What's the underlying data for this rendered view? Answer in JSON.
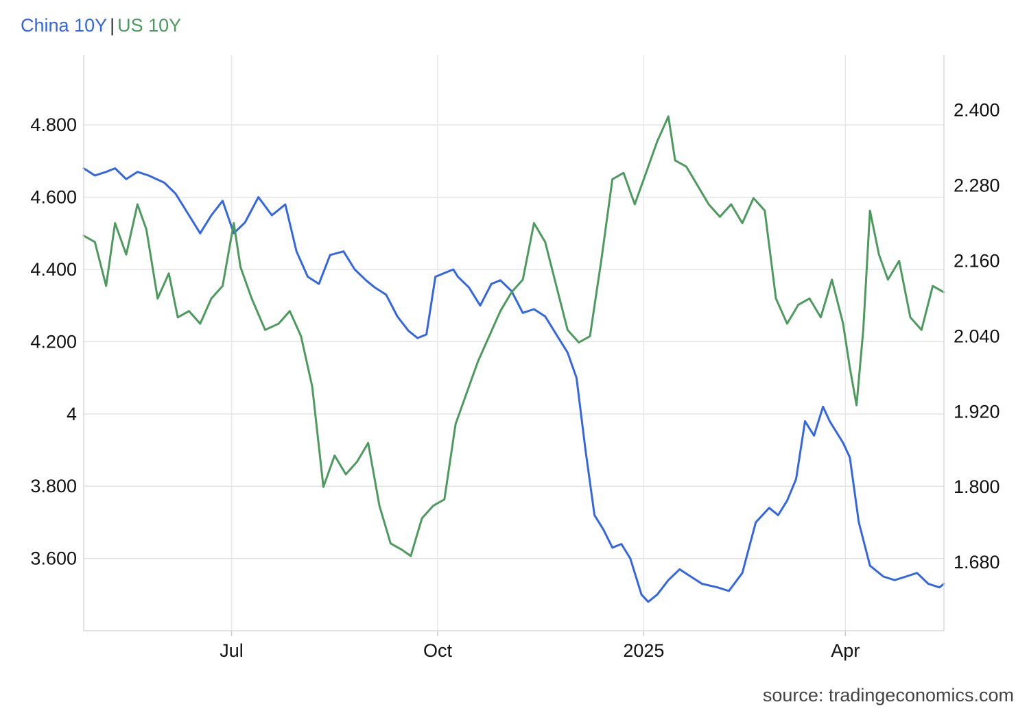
{
  "legend": {
    "separator": "|",
    "items": [
      {
        "label": "China 10Y",
        "color": "#3366e6"
      },
      {
        "label": "US 10Y",
        "color": "#4c9a5e"
      }
    ]
  },
  "source": "source: tradingeconomics.com",
  "chart_data": {
    "type": "line",
    "title": "",
    "grid": true,
    "x_range": [
      "2024-04-26",
      "2025-05-15"
    ],
    "x_ticks": [
      {
        "label": "Jul",
        "date": "2024-07-01"
      },
      {
        "label": "Oct",
        "date": "2024-10-01"
      },
      {
        "label": "2025",
        "date": "2025-01-01"
      },
      {
        "label": "Apr",
        "date": "2025-04-01"
      }
    ],
    "y_left": {
      "range": [
        3.4,
        4.994
      ],
      "ticks": [
        3.6,
        3.8,
        4,
        4.2,
        4.4,
        4.6,
        4.8
      ],
      "tick_labels": [
        "3.600",
        "3.800",
        "4",
        "4.200",
        "4.400",
        "4.600",
        "4.800"
      ]
    },
    "y_right": {
      "range": [
        1.571,
        2.488
      ],
      "ticks": [
        1.68,
        1.8,
        1.92,
        2.04,
        2.16,
        2.28,
        2.4
      ],
      "tick_labels": [
        "1.680",
        "1.800",
        "1.920",
        "2.040",
        "2.160",
        "2.280",
        "2.400"
      ]
    },
    "series": [
      {
        "name": "China 10Y",
        "axis": "left",
        "color": "#3366e6",
        "x": [
          "2024-04-26",
          "2024-05-01",
          "2024-05-06",
          "2024-05-10",
          "2024-05-15",
          "2024-05-20",
          "2024-05-25",
          "2024-06-01",
          "2024-06-06",
          "2024-06-12",
          "2024-06-17",
          "2024-06-22",
          "2024-06-27",
          "2024-07-02",
          "2024-07-07",
          "2024-07-13",
          "2024-07-19",
          "2024-07-25",
          "2024-07-30",
          "2024-08-04",
          "2024-08-09",
          "2024-08-14",
          "2024-08-20",
          "2024-08-25",
          "2024-08-30",
          "2024-09-03",
          "2024-09-08",
          "2024-09-13",
          "2024-09-18",
          "2024-09-22",
          "2024-09-26",
          "2024-09-30",
          "2024-10-08",
          "2024-10-10",
          "2024-10-15",
          "2024-10-20",
          "2024-10-25",
          "2024-10-29",
          "2024-11-03",
          "2024-11-08",
          "2024-11-13",
          "2024-11-18",
          "2024-11-23",
          "2024-11-28",
          "2024-12-02",
          "2024-12-06",
          "2024-12-10",
          "2024-12-14",
          "2024-12-18",
          "2024-12-22",
          "2024-12-26",
          "2024-12-31",
          "2025-01-03",
          "2025-01-07",
          "2025-01-12",
          "2025-01-17",
          "2025-01-22",
          "2025-01-27",
          "2025-02-03",
          "2025-02-08",
          "2025-02-14",
          "2025-02-20",
          "2025-02-26",
          "2025-03-02",
          "2025-03-06",
          "2025-03-10",
          "2025-03-14",
          "2025-03-18",
          "2025-03-22",
          "2025-03-25",
          "2025-03-31",
          "2025-04-03",
          "2025-04-07",
          "2025-04-12",
          "2025-04-18",
          "2025-04-23",
          "2025-04-28",
          "2025-05-03",
          "2025-05-08",
          "2025-05-13",
          "2025-05-15"
        ],
        "values": [
          4.68,
          4.66,
          4.67,
          4.68,
          4.65,
          4.67,
          4.66,
          4.64,
          4.61,
          4.55,
          4.5,
          4.55,
          4.59,
          4.5,
          4.53,
          4.6,
          4.55,
          4.58,
          4.45,
          4.38,
          4.36,
          4.44,
          4.45,
          4.4,
          4.37,
          4.35,
          4.33,
          4.27,
          4.23,
          4.21,
          4.22,
          4.38,
          4.4,
          4.38,
          4.35,
          4.3,
          4.36,
          4.37,
          4.34,
          4.28,
          4.29,
          4.27,
          4.22,
          4.17,
          4.1,
          3.9,
          3.72,
          3.68,
          3.63,
          3.64,
          3.6,
          3.5,
          3.48,
          3.5,
          3.54,
          3.57,
          3.55,
          3.53,
          3.52,
          3.51,
          3.56,
          3.7,
          3.74,
          3.72,
          3.76,
          3.82,
          3.98,
          3.94,
          4.02,
          3.98,
          3.92,
          3.88,
          3.7,
          3.58,
          3.55,
          3.54,
          3.55,
          3.56,
          3.53,
          3.52,
          3.53
        ]
      },
      {
        "name": "US 10Y",
        "axis": "right",
        "color": "#4c9a5e",
        "x": [
          "2024-04-26",
          "2024-05-01",
          "2024-05-06",
          "2024-05-10",
          "2024-05-15",
          "2024-05-20",
          "2024-05-24",
          "2024-05-29",
          "2024-06-03",
          "2024-06-07",
          "2024-06-12",
          "2024-06-17",
          "2024-06-22",
          "2024-06-27",
          "2024-07-02",
          "2024-07-05",
          "2024-07-10",
          "2024-07-16",
          "2024-07-22",
          "2024-07-27",
          "2024-08-01",
          "2024-08-06",
          "2024-08-11",
          "2024-08-16",
          "2024-08-21",
          "2024-08-26",
          "2024-08-31",
          "2024-09-05",
          "2024-09-10",
          "2024-09-15",
          "2024-09-19",
          "2024-09-24",
          "2024-09-29",
          "2024-10-04",
          "2024-10-09",
          "2024-10-14",
          "2024-10-19",
          "2024-10-24",
          "2024-10-29",
          "2024-11-03",
          "2024-11-08",
          "2024-11-13",
          "2024-11-18",
          "2024-11-23",
          "2024-11-28",
          "2024-12-03",
          "2024-12-08",
          "2024-12-13",
          "2024-12-18",
          "2024-12-23",
          "2024-12-28",
          "2025-01-02",
          "2025-01-07",
          "2025-01-12",
          "2025-01-15",
          "2025-01-20",
          "2025-01-25",
          "2025-01-30",
          "2025-02-04",
          "2025-02-09",
          "2025-02-14",
          "2025-02-19",
          "2025-02-24",
          "2025-03-01",
          "2025-03-06",
          "2025-03-11",
          "2025-03-16",
          "2025-03-21",
          "2025-03-26",
          "2025-03-31",
          "2025-04-03",
          "2025-04-06",
          "2025-04-09",
          "2025-04-12",
          "2025-04-16",
          "2025-04-20",
          "2025-04-25",
          "2025-04-30",
          "2025-05-05",
          "2025-05-10",
          "2025-05-15"
        ],
        "values": [
          2.2,
          2.19,
          2.12,
          2.22,
          2.17,
          2.25,
          2.21,
          2.1,
          2.14,
          2.07,
          2.08,
          2.06,
          2.1,
          2.12,
          2.22,
          2.15,
          2.1,
          2.05,
          2.06,
          2.08,
          2.04,
          1.96,
          1.8,
          1.85,
          1.82,
          1.84,
          1.87,
          1.77,
          1.71,
          1.7,
          1.69,
          1.75,
          1.77,
          1.78,
          1.9,
          1.95,
          2.0,
          2.04,
          2.08,
          2.11,
          2.13,
          2.22,
          2.19,
          2.12,
          2.05,
          2.03,
          2.04,
          2.16,
          2.29,
          2.3,
          2.25,
          2.3,
          2.35,
          2.39,
          2.32,
          2.31,
          2.28,
          2.25,
          2.23,
          2.25,
          2.22,
          2.26,
          2.24,
          2.1,
          2.06,
          2.09,
          2.1,
          2.07,
          2.13,
          2.06,
          1.99,
          1.93,
          2.05,
          2.24,
          2.17,
          2.13,
          2.16,
          2.07,
          2.05,
          2.12,
          2.11
        ]
      }
    ]
  }
}
